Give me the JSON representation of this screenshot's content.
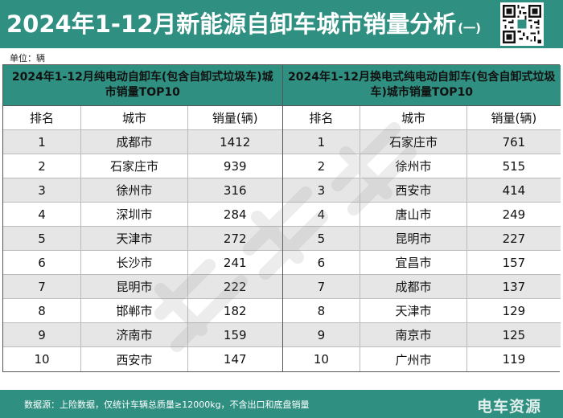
{
  "header": {
    "title": "2024年1-12月新能源自卸车城市销量分析",
    "title_suffix": "(一)",
    "qr_icon": "qr-code-icon"
  },
  "unit_label": "单位：辆",
  "tables": [
    {
      "title": "2024年1-12月纯电动自卸车(包含自卸式垃圾车)城市销量TOP10",
      "columns": [
        "排名",
        "城市",
        "销量(辆)"
      ],
      "rows": [
        {
          "rank": "1",
          "city": "成都市",
          "sales": "1412"
        },
        {
          "rank": "2",
          "city": "石家庄市",
          "sales": "939"
        },
        {
          "rank": "3",
          "city": "徐州市",
          "sales": "316"
        },
        {
          "rank": "4",
          "city": "深圳市",
          "sales": "284"
        },
        {
          "rank": "5",
          "city": "天津市",
          "sales": "272"
        },
        {
          "rank": "6",
          "city": "长沙市",
          "sales": "241"
        },
        {
          "rank": "7",
          "city": "昆明市",
          "sales": "222"
        },
        {
          "rank": "8",
          "city": "邯郸市",
          "sales": "182"
        },
        {
          "rank": "9",
          "city": "济南市",
          "sales": "159"
        },
        {
          "rank": "10",
          "city": "西安市",
          "sales": "147"
        }
      ]
    },
    {
      "title": "2024年1-12月换电式纯电动自卸车(包含自卸式垃圾车)城市销量TOP10",
      "columns": [
        "排名",
        "城市",
        "销量(辆)"
      ],
      "rows": [
        {
          "rank": "1",
          "city": "石家庄市",
          "sales": "761"
        },
        {
          "rank": "2",
          "city": "徐州市",
          "sales": "515"
        },
        {
          "rank": "3",
          "city": "西安市",
          "sales": "414"
        },
        {
          "rank": "4",
          "city": "唐山市",
          "sales": "249"
        },
        {
          "rank": "5",
          "city": "昆明市",
          "sales": "227"
        },
        {
          "rank": "6",
          "city": "宜昌市",
          "sales": "157"
        },
        {
          "rank": "7",
          "city": "成都市",
          "sales": "137"
        },
        {
          "rank": "8",
          "city": "天津市",
          "sales": "129"
        },
        {
          "rank": "9",
          "city": "南京市",
          "sales": "125"
        },
        {
          "rank": "10",
          "city": "广州市",
          "sales": "119"
        }
      ]
    }
  ],
  "footer": {
    "note": "数据源：上险数据，仅统计车辆总质量≥12000kg，不含出口和底盘销量",
    "logo_text": "电车资源"
  },
  "colors": {
    "brand_teal": "#2f8f80",
    "stripe_gray": "#e6e6e6"
  }
}
